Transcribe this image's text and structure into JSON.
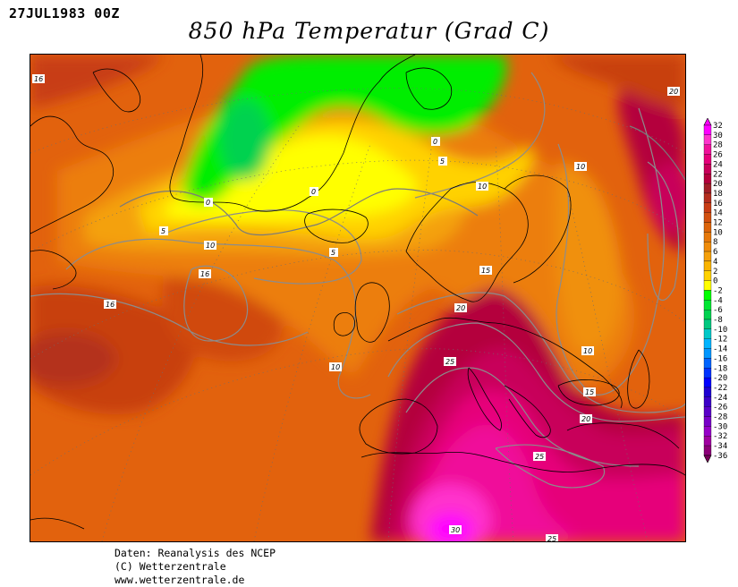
{
  "header": {
    "date": "27JUL1983 00Z",
    "title": "850 hPa Temperatur (Grad C)"
  },
  "footer": {
    "line1": "Daten: Reanalysis des NCEP",
    "line2": "(C) Wetterzentrale",
    "line3": "www.wetterzentrale.de"
  },
  "legend": {
    "levels": [
      "32",
      "30",
      "28",
      "26",
      "24",
      "22",
      "20",
      "18",
      "16",
      "14",
      "12",
      "10",
      "8",
      "6",
      "4",
      "2",
      "0",
      "-2",
      "-4",
      "-6",
      "-8",
      "-10",
      "-12",
      "-14",
      "-16",
      "-18",
      "-20",
      "-22",
      "-24",
      "-26",
      "-28",
      "-30",
      "-32",
      "-34",
      "-36"
    ],
    "colors": [
      "#ff00ff",
      "#ff33cc",
      "#f0109a",
      "#e6007a",
      "#c8005a",
      "#b4003c",
      "#a01e28",
      "#b42d1e",
      "#c83c14",
      "#d2500f",
      "#dc640a",
      "#e6780a",
      "#f08c0a",
      "#f5a00a",
      "#fab400",
      "#ffd200",
      "#ffff00",
      "#00ff00",
      "#00e632",
      "#00d250",
      "#00c880",
      "#00c8c8",
      "#00b4ff",
      "#0096ff",
      "#0064ff",
      "#0032ff",
      "#0000ff",
      "#1e00d2",
      "#3c00c8",
      "#5a00c8",
      "#7800c8",
      "#9600c8",
      "#a000a0",
      "#8c0078",
      "#78005a"
    ]
  },
  "contour_labels": [
    "16",
    "16",
    "15",
    "15",
    "10",
    "10",
    "10",
    "10",
    "10",
    "10",
    "5",
    "5",
    "5",
    "0",
    "0",
    "0",
    "20",
    "20",
    "20",
    "25",
    "25",
    "25",
    "30",
    "15",
    "16",
    "15"
  ]
}
